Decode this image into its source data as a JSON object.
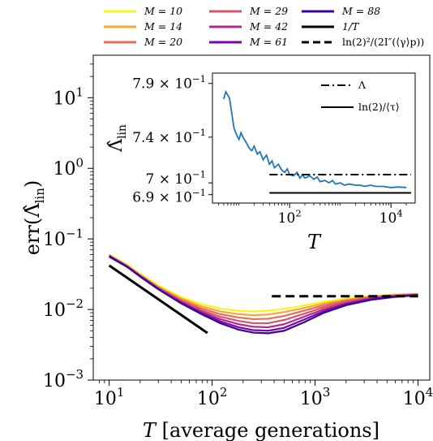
{
  "chart_data": [
    {
      "type": "line",
      "xlabel": "T [average generations]",
      "ylabel": "err(Λ̂lin)",
      "xscale": "log",
      "yscale": "log",
      "xlim": [
        7,
        13000
      ],
      "ylim": [
        0.001,
        40
      ],
      "xticks": [
        10,
        100,
        1000,
        10000
      ],
      "xtick_labels": [
        "10^1",
        "10^2",
        "10^3",
        "10^4"
      ],
      "yticks": [
        0.001,
        0.01,
        0.1,
        1,
        10
      ],
      "ytick_labels": [
        "10^−3",
        "10^−2",
        "10^−1",
        "10^0",
        "10^1"
      ],
      "grid": false,
      "legend_placement": "top (above plot)",
      "legend_entries": [
        {
          "text": "M = 10",
          "color": "#f0f921"
        },
        {
          "text": "M = 14",
          "color": "#fca636"
        },
        {
          "text": "M = 20",
          "color": "#e66c5c"
        },
        {
          "text": "M = 29",
          "color": "#d5546e"
        },
        {
          "text": "M = 42",
          "color": "#b12a90"
        },
        {
          "text": "M = 61",
          "color": "#7e03a8"
        },
        {
          "text": "M = 88",
          "color": "#350498"
        },
        {
          "text": "1/T",
          "color": "#000000"
        },
        {
          "text": "ln(2)²/(2I″(⟨γ⟩p))",
          "color": "#000000"
        }
      ],
      "x": [
        10,
        15,
        20,
        30,
        50,
        80,
        120,
        180,
        250,
        350,
        500,
        800,
        1200,
        2000,
        3500,
        6000,
        10000
      ],
      "series": [
        {
          "name": "M = 10",
          "color": "#f0f921",
          "values": [
            0.06,
            0.043,
            0.032,
            0.022,
            0.015,
            0.0118,
            0.0103,
            0.0096,
            0.0094,
            0.0096,
            0.0102,
            0.0115,
            0.0128,
            0.0143,
            0.0155,
            0.0163,
            0.0168
          ]
        },
        {
          "name": "M = 14",
          "color": "#fca636",
          "values": [
            0.059,
            0.042,
            0.031,
            0.021,
            0.0143,
            0.011,
            0.0094,
            0.0086,
            0.0083,
            0.0085,
            0.0092,
            0.0106,
            0.0121,
            0.0138,
            0.0152,
            0.0161,
            0.0166
          ]
        },
        {
          "name": "M = 20",
          "color": "#e66c5c",
          "values": [
            0.058,
            0.041,
            0.0305,
            0.0205,
            0.0137,
            0.0103,
            0.0086,
            0.0077,
            0.0073,
            0.0074,
            0.0081,
            0.0097,
            0.0114,
            0.0133,
            0.0149,
            0.0159,
            0.0164
          ]
        },
        {
          "name": "M = 29",
          "color": "#d5546e",
          "values": [
            0.058,
            0.041,
            0.0302,
            0.0201,
            0.0132,
            0.0097,
            0.0079,
            0.0069,
            0.0064,
            0.0064,
            0.0071,
            0.0088,
            0.0107,
            0.0128,
            0.0146,
            0.0157,
            0.0163
          ]
        },
        {
          "name": "M = 42",
          "color": "#b12a90",
          "values": [
            0.057,
            0.0405,
            0.0298,
            0.0198,
            0.0128,
            0.0092,
            0.0073,
            0.0062,
            0.0057,
            0.0056,
            0.0062,
            0.008,
            0.01,
            0.0123,
            0.0143,
            0.0155,
            0.0162
          ]
        },
        {
          "name": "M = 61",
          "color": "#7e03a8",
          "values": [
            0.057,
            0.0402,
            0.0295,
            0.0195,
            0.0125,
            0.0088,
            0.0068,
            0.0056,
            0.0051,
            0.005,
            0.0055,
            0.0073,
            0.0094,
            0.0119,
            0.014,
            0.0153,
            0.0161
          ]
        },
        {
          "name": "M = 88",
          "color": "#350498",
          "values": [
            0.056,
            0.04,
            0.0292,
            0.0193,
            0.0122,
            0.0085,
            0.0064,
            0.0052,
            0.0047,
            0.0046,
            0.005,
            0.0067,
            0.0089,
            0.0115,
            0.0137,
            0.0151,
            0.016
          ]
        }
      ],
      "reference_lines": [
        {
          "name": "1/T",
          "style": "solid",
          "color": "#000000",
          "x": [
            10,
            90
          ],
          "y": [
            0.042,
            0.00465
          ]
        },
        {
          "name": "ln(2)²/(2I″(⟨γ⟩p))",
          "style": "dashed",
          "color": "#000000",
          "x": [
            380,
            10000
          ],
          "y": [
            0.0154,
            0.0154
          ]
        }
      ]
    },
    {
      "type": "line",
      "placement": "inset (top-right)",
      "xlabel": "T",
      "ylabel": "Λ̂lin",
      "xscale": "log",
      "yscale": "log",
      "xlim": [
        3,
        30000
      ],
      "ylim": [
        0.683,
        0.8
      ],
      "xticks": [
        100,
        10000
      ],
      "xtick_labels": [
        "10^2",
        "10^4"
      ],
      "yticks": [
        0.69,
        0.7,
        0.74,
        0.79
      ],
      "ytick_labels": [
        "6.9 × 10^−1",
        "7 × 10^−1",
        "7.4 × 10^−1",
        "7.9 × 10^−1"
      ],
      "grid": false,
      "legend_placement": "top-right",
      "legend_entries": [
        {
          "text": "Λ",
          "style": "dashdot"
        },
        {
          "text": "ln(2)/⟨τ⟩",
          "style": "solid"
        }
      ],
      "series": [
        {
          "name": "Λ̂lin",
          "color": "#1f77b4",
          "x": [
            5,
            5.5,
            6,
            6.5,
            7,
            8,
            9,
            10,
            11,
            12,
            14,
            16,
            18,
            20,
            23,
            26,
            30,
            35,
            40,
            45,
            50,
            60,
            70,
            80,
            90,
            100,
            120,
            140,
            160,
            180,
            200,
            250,
            300,
            350,
            400,
            500,
            600,
            700,
            800,
            1000,
            1200,
            1500,
            2000,
            2500,
            3000,
            4000,
            5000,
            7000,
            10000,
            14000,
            20000
          ],
          "values": [
            0.775,
            0.782,
            0.779,
            0.776,
            0.766,
            0.748,
            0.742,
            0.738,
            0.744,
            0.74,
            0.735,
            0.73,
            0.728,
            0.732,
            0.725,
            0.727,
            0.72,
            0.724,
            0.716,
            0.719,
            0.713,
            0.716,
            0.711,
            0.709,
            0.712,
            0.707,
            0.706,
            0.709,
            0.704,
            0.707,
            0.704,
            0.706,
            0.703,
            0.705,
            0.701,
            0.702,
            0.7,
            0.702,
            0.699,
            0.7,
            0.698,
            0.699,
            0.698,
            0.698,
            0.697,
            0.698,
            0.697,
            0.697,
            0.696,
            0.6965,
            0.696
          ]
        }
      ],
      "reference_lines": [
        {
          "name": "Λ",
          "style": "dashdot",
          "color": "#000000",
          "x": [
            40,
            25000
          ],
          "y": [
            0.707,
            0.707
          ]
        },
        {
          "name": "ln(2)/⟨τ⟩",
          "style": "solid",
          "color": "#000000",
          "x": [
            40,
            25000
          ],
          "y": [
            0.6915,
            0.6915
          ]
        }
      ]
    }
  ]
}
